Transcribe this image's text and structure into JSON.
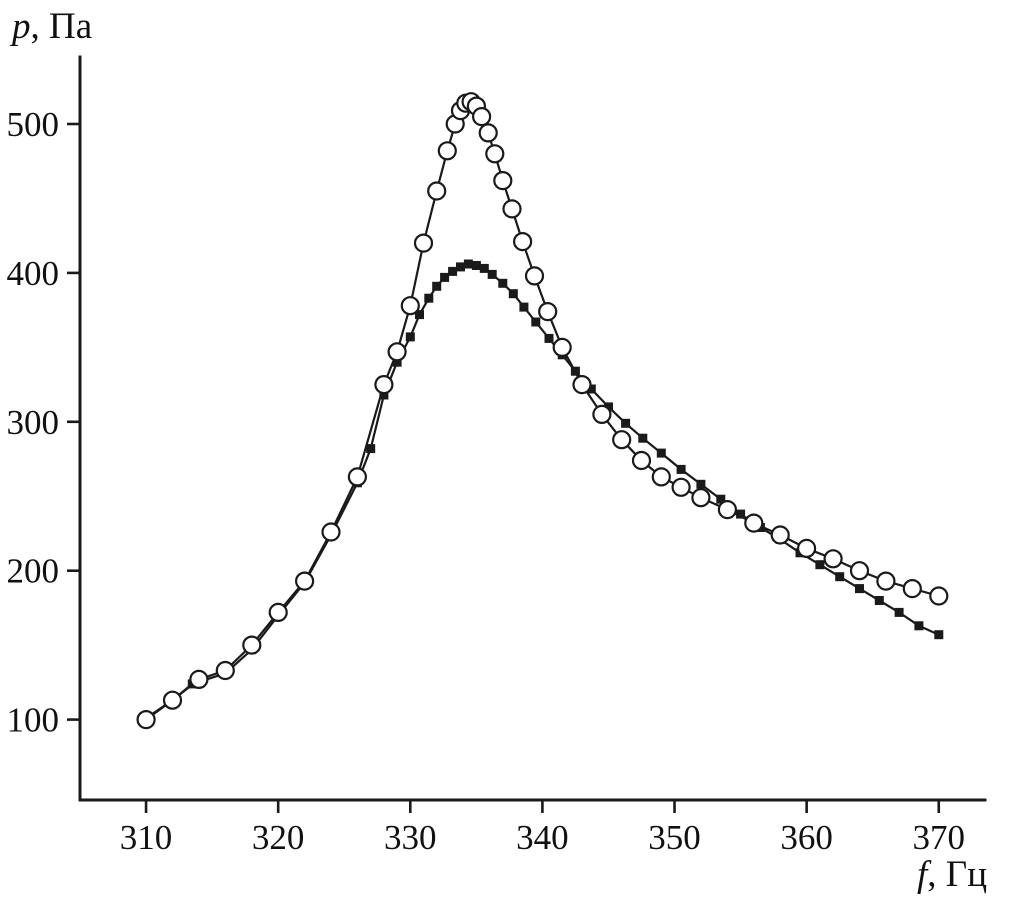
{
  "figure": {
    "y_axis_title_italic": "p",
    "y_axis_title_rest": ", Па",
    "x_axis_title_italic": "f",
    "x_axis_title_rest": ", Гц"
  },
  "chart_data": {
    "type": "line",
    "title": "",
    "xlabel": "f, Гц",
    "ylabel": "p, Па",
    "xlim": [
      305,
      373.5
    ],
    "ylim": [
      46,
      545
    ],
    "xticks": [
      310,
      320,
      330,
      340,
      350,
      360,
      370
    ],
    "yticks": [
      100,
      200,
      300,
      400,
      500
    ],
    "grid": false,
    "legend": "none",
    "colors": {
      "stroke": "#1a1a1a",
      "text": "#111111",
      "background": "#ffffff"
    },
    "series": [
      {
        "name": "filled-squares",
        "marker": "square",
        "points": [
          [
            310,
            101
          ],
          [
            312,
            113
          ],
          [
            313.5,
            124
          ],
          [
            316,
            131
          ],
          [
            318,
            147
          ],
          [
            320,
            170
          ],
          [
            322,
            192
          ],
          [
            324,
            224
          ],
          [
            326,
            259
          ],
          [
            327,
            282
          ],
          [
            328,
            318
          ],
          [
            329,
            340
          ],
          [
            330,
            357
          ],
          [
            330.7,
            372
          ],
          [
            331.4,
            383
          ],
          [
            332,
            391
          ],
          [
            332.6,
            397
          ],
          [
            333.2,
            401
          ],
          [
            333.8,
            404
          ],
          [
            334.4,
            406
          ],
          [
            335,
            405
          ],
          [
            335.6,
            403
          ],
          [
            336.2,
            399
          ],
          [
            337,
            393
          ],
          [
            337.8,
            386
          ],
          [
            338.6,
            377
          ],
          [
            339.5,
            367
          ],
          [
            340.5,
            356
          ],
          [
            341.5,
            345
          ],
          [
            342.5,
            334
          ],
          [
            343.7,
            322
          ],
          [
            345,
            310
          ],
          [
            346.3,
            299
          ],
          [
            347.6,
            289
          ],
          [
            349,
            279
          ],
          [
            350.5,
            268
          ],
          [
            352,
            258
          ],
          [
            353.5,
            248
          ],
          [
            355,
            238
          ],
          [
            356.5,
            229
          ],
          [
            358,
            221
          ],
          [
            359.5,
            212
          ],
          [
            361,
            204
          ],
          [
            362.5,
            196
          ],
          [
            364,
            188
          ],
          [
            365.5,
            180
          ],
          [
            367,
            172
          ],
          [
            368.5,
            163
          ],
          [
            370,
            157
          ]
        ]
      },
      {
        "name": "open-circles",
        "marker": "circle",
        "points": [
          [
            310,
            100
          ],
          [
            312,
            113
          ],
          [
            314,
            127
          ],
          [
            316,
            133
          ],
          [
            318,
            150
          ],
          [
            320,
            172
          ],
          [
            322,
            193
          ],
          [
            324,
            226
          ],
          [
            326,
            263
          ],
          [
            328,
            325
          ],
          [
            329,
            347
          ],
          [
            330,
            378
          ],
          [
            331,
            420
          ],
          [
            332,
            455
          ],
          [
            332.8,
            482
          ],
          [
            333.4,
            500
          ],
          [
            333.8,
            509
          ],
          [
            334.2,
            514
          ],
          [
            334.6,
            515
          ],
          [
            335,
            512
          ],
          [
            335.4,
            505
          ],
          [
            335.9,
            494
          ],
          [
            336.4,
            480
          ],
          [
            337,
            462
          ],
          [
            337.7,
            443
          ],
          [
            338.5,
            421
          ],
          [
            339.4,
            398
          ],
          [
            340.4,
            374
          ],
          [
            341.5,
            350
          ],
          [
            343,
            325
          ],
          [
            344.5,
            305
          ],
          [
            346,
            288
          ],
          [
            347.5,
            274
          ],
          [
            349,
            263
          ],
          [
            350.5,
            256
          ],
          [
            352,
            249
          ],
          [
            354,
            241
          ],
          [
            356,
            232
          ],
          [
            358,
            224
          ],
          [
            360,
            215
          ],
          [
            362,
            208
          ],
          [
            364,
            200
          ],
          [
            366,
            193
          ],
          [
            368,
            188
          ],
          [
            370,
            183
          ]
        ]
      }
    ]
  }
}
